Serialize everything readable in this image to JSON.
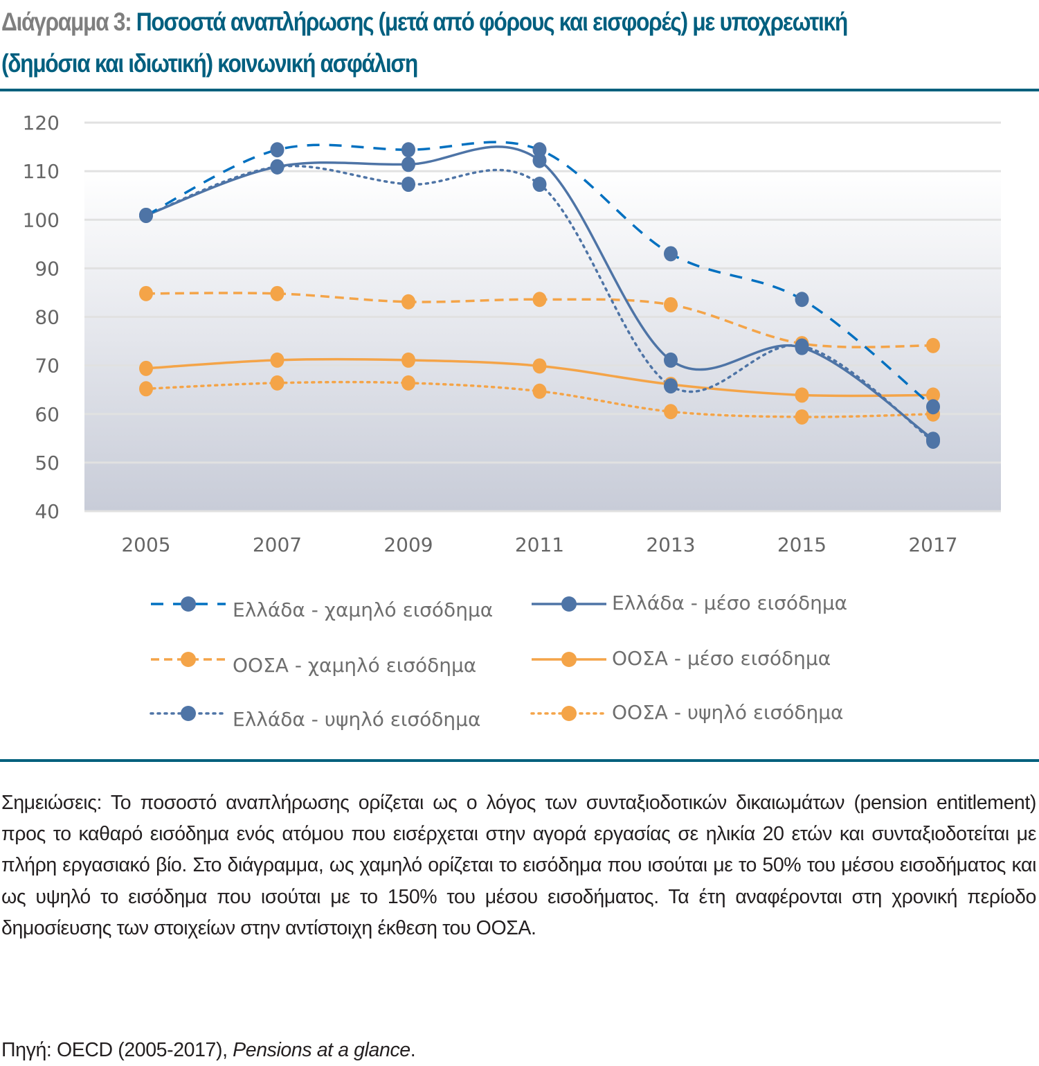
{
  "title": {
    "prefix": "Διάγραμμα 3: ",
    "line1": "Ποσοστά αναπλήρωσης (μετά από φόρους και εισφορές) με υποχρεωτική",
    "line2": "(δημόσια και ιδιωτική) κοινωνική ασφάλιση"
  },
  "colors": {
    "title_prefix": "#7f7f7f",
    "title_main": "#005f7f",
    "greece_marker": "#4e74a6",
    "greece_low_line": "#0070c0",
    "oecd": "#f4a448",
    "gridline": "#e1e1e1",
    "plot_bg_top": "#ffffff",
    "plot_bg_bottom": "#c8ccd8"
  },
  "chart_data": {
    "type": "line",
    "title": "",
    "xlabel": "",
    "ylabel": "",
    "x": [
      "2005",
      "2007",
      "2009",
      "2011",
      "2013",
      "2015",
      "2017"
    ],
    "ylim": [
      40,
      120
    ],
    "yticks": [
      40,
      50,
      60,
      70,
      80,
      90,
      100,
      110,
      120
    ],
    "grid": true,
    "smooth": true,
    "legend_position": "bottom",
    "series": [
      {
        "key": "gr_low",
        "name": "Ελλάδα - χαμηλό εισόδημα",
        "color": "#0070c0",
        "marker_color": "#4e74a6",
        "dash": "dash",
        "values": [
          100.9,
          114.4,
          114.4,
          114.4,
          93.0,
          83.6,
          61.5
        ]
      },
      {
        "key": "gr_mid",
        "name": "Ελλάδα - μέσο εισόδημα",
        "color": "#4e74a6",
        "marker_color": "#4e74a6",
        "dash": "solid",
        "values": [
          100.9,
          110.9,
          111.4,
          112.2,
          71.1,
          73.7,
          54.8
        ]
      },
      {
        "key": "oecd_low",
        "name": "ΟΟΣΑ  - χαμηλό εισόδημα",
        "color": "#f4a448",
        "marker_color": "#f4a448",
        "dash": "dash2",
        "values": [
          84.8,
          84.8,
          83.1,
          83.6,
          82.5,
          74.5,
          74.1
        ]
      },
      {
        "key": "oecd_mid",
        "name": "ΟΟΣΑ - μέσο εισόδημα",
        "color": "#f4a448",
        "marker_color": "#f4a448",
        "dash": "solid",
        "values": [
          69.4,
          71.1,
          71.1,
          69.9,
          66.1,
          63.9,
          63.9
        ]
      },
      {
        "key": "gr_high",
        "name": "Ελλάδα - υψηλό εισόδημα",
        "color": "#4e74a6",
        "marker_color": "#4e74a6",
        "dash": "dot",
        "values": [
          100.9,
          110.9,
          107.3,
          107.3,
          65.8,
          74.0,
          54.4
        ]
      },
      {
        "key": "oecd_high",
        "name": "ΟΟΣΑ - υψηλό εισόδημα",
        "color": "#f4a448",
        "marker_color": "#f4a448",
        "dash": "dot",
        "values": [
          65.2,
          66.4,
          66.4,
          64.7,
          60.5,
          59.4,
          60.0
        ]
      }
    ]
  },
  "notes": {
    "text": "Σημειώσεις: Το ποσοστό αναπλήρωσης ορίζεται ως ο λόγος των συνταξιοδοτικών δικαιωμάτων (pension entitlement) προς το καθαρό εισόδημα ενός ατόμου που εισέρχεται στην αγορά εργασίας σε ηλικία 20 ετών και συνταξιοδοτείται με πλήρη εργασιακό βίο. Στο διάγραμμα, ως χαμηλό ορίζεται το εισόδημα που ισούται με το 50% του μέσου εισοδήματος και ως υψηλό το εισόδημα που ισούται με το 150% του μέσου εισοδήματος. Τα έτη αναφέρονται στη χρονική περίοδο δημοσίευσης των στοιχείων στην αντίστοιχη έκθεση του ΟΟΣΑ."
  },
  "source": {
    "prefix": "Πηγή: OECD (2005-2017), ",
    "publication": "Pensions at a glance",
    "suffix": "."
  }
}
